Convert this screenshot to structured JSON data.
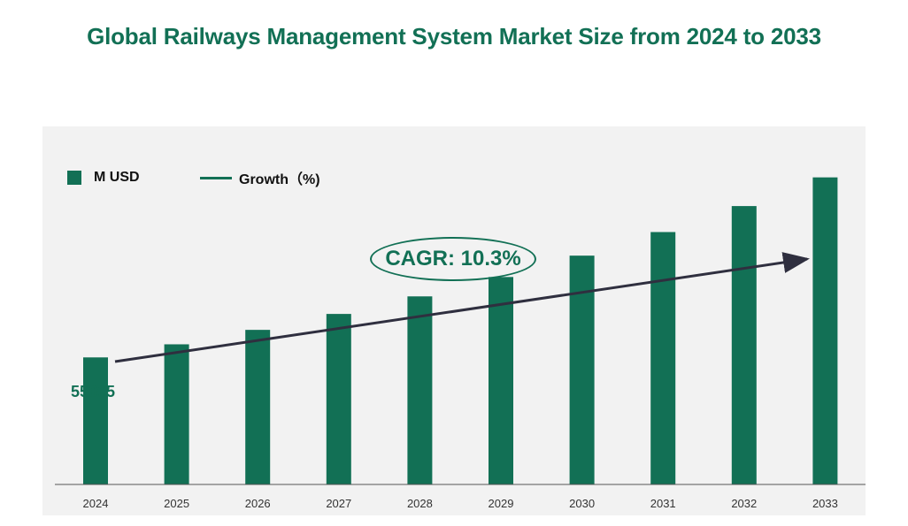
{
  "title": "Global Railways Management System Market Size from 2024 to 2033",
  "legend": {
    "bar_label": "M USD",
    "line_label": "Growth（%)"
  },
  "cagr_label": "CAGR: 10.3%",
  "colors": {
    "bar": "#127055",
    "title": "#127055",
    "arrow": "#2f2f3f",
    "panel": "#f2f2f2"
  },
  "chart_data": {
    "type": "bar",
    "title": "Global Railways Management System Market Size from 2024 to 2033",
    "categories": [
      "2024",
      "2025",
      "2026",
      "2027",
      "2028",
      "2029",
      "2030",
      "2031",
      "2032",
      "2033"
    ],
    "series": [
      {
        "name": "M USD",
        "values": [
          55005,
          60670,
          66920,
          73820,
          81420,
          89810,
          99060,
          109270,
          120520,
          132940
        ]
      }
    ],
    "data_labels": [
      {
        "category": "2024",
        "text": "55005"
      }
    ],
    "annotation": "CAGR: 10.3%",
    "ylim": [
      0,
      155000
    ],
    "legend_position": "top-left",
    "grid": false
  }
}
